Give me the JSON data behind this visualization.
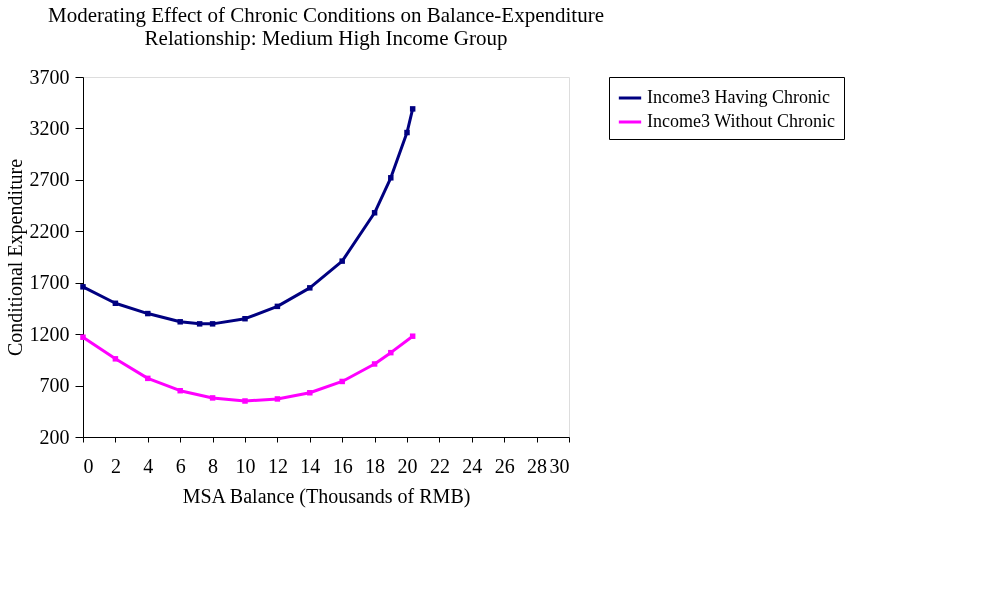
{
  "chart_data": {
    "type": "line",
    "title": [
      "Moderating Effect of Chronic Conditions on Balance-Expenditure",
      "Relationship: Medium High Income Group"
    ],
    "xlabel": "MSA Balance (Thousands of RMB)",
    "ylabel": "Conditional Expenditure",
    "xlim": [
      0,
      30
    ],
    "xticks": [
      0,
      2,
      4,
      6,
      8,
      10,
      12,
      14,
      16,
      18,
      20,
      22,
      24,
      26,
      28,
      30
    ],
    "ylim": [
      200,
      3700
    ],
    "yticks": [
      200,
      700,
      1200,
      1700,
      2200,
      2700,
      3200,
      3700
    ],
    "grid": false,
    "legend": "right",
    "marker": "square",
    "line_style": "solid",
    "series": [
      {
        "name": "Income3 Having Chronic",
        "color": "#000080",
        "x": [
          0,
          2,
          4,
          6,
          7.2,
          8,
          10,
          12,
          14,
          16,
          18,
          19,
          20,
          20.35
        ],
        "values": [
          1660,
          1500,
          1400,
          1320,
          1300,
          1300,
          1350,
          1470,
          1650,
          1910,
          2380,
          2720,
          3160,
          3390
        ]
      },
      {
        "name": "Income3 Without Chronic",
        "color": "#ff00ff",
        "x": [
          0,
          2,
          4,
          6,
          8,
          10,
          12,
          14,
          16,
          18,
          19,
          20.35
        ],
        "values": [
          1170,
          960,
          770,
          650,
          580,
          550,
          570,
          630,
          740,
          910,
          1020,
          1180
        ]
      }
    ]
  }
}
